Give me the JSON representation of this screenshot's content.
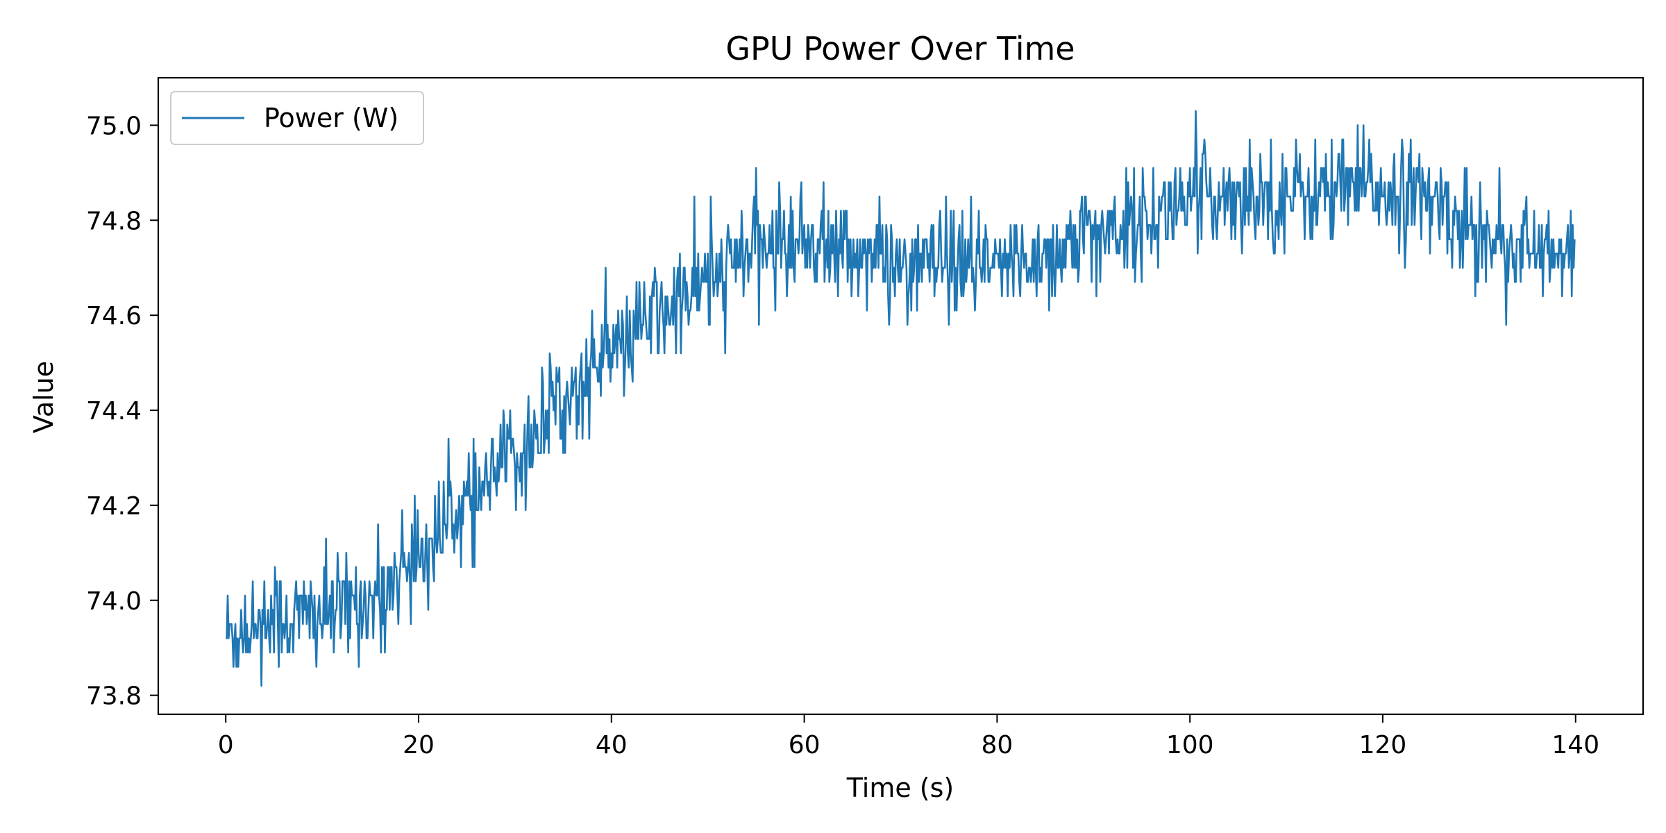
{
  "chart_data": {
    "type": "line",
    "title": "GPU Power Over Time",
    "xlabel": "Time (s)",
    "ylabel": "Value",
    "xlim": [
      -7,
      147
    ],
    "ylim": [
      73.76,
      75.1
    ],
    "xticks": [
      0,
      20,
      40,
      60,
      80,
      100,
      120,
      140
    ],
    "yticks": [
      73.8,
      74.0,
      74.2,
      74.4,
      74.6,
      74.8,
      75.0
    ],
    "ytick_labels": [
      "73.8",
      "74.0",
      "74.2",
      "74.4",
      "74.6",
      "74.8",
      "75.0"
    ],
    "grid": false,
    "legend_position": "top-left",
    "series": [
      {
        "name": "Power (W)",
        "color": "#1f77b4",
        "x_start": 0,
        "x_step": 0.1,
        "n_points": 1400,
        "trend_description": "Samples at 0.1 s; quantized to ~0.03 W steps. Noisy rise from ~73.9 W near t=0 to ~74.75 W by t=60, then a plateau around 74.7–74.85 W, peaking near 75.04 W around t=123 and easing to ~74.7 W at t=140.",
        "anchor_x": [
          0,
          5,
          10,
          15,
          20,
          25,
          30,
          35,
          40,
          45,
          50,
          55,
          60,
          65,
          70,
          75,
          80,
          85,
          90,
          95,
          100,
          105,
          110,
          115,
          120,
          125,
          130,
          135,
          140
        ],
        "anchor_mean": [
          73.93,
          73.96,
          73.97,
          74.0,
          74.1,
          74.2,
          74.3,
          74.42,
          74.52,
          74.6,
          74.67,
          74.74,
          74.76,
          74.73,
          74.71,
          74.7,
          74.7,
          74.73,
          74.77,
          74.8,
          74.84,
          74.86,
          74.85,
          74.86,
          74.87,
          74.84,
          74.78,
          74.74,
          74.71
        ],
        "noise_sd": 0.055,
        "quantum": 0.03,
        "min_value": 73.82,
        "max_value": 75.04
      }
    ]
  }
}
